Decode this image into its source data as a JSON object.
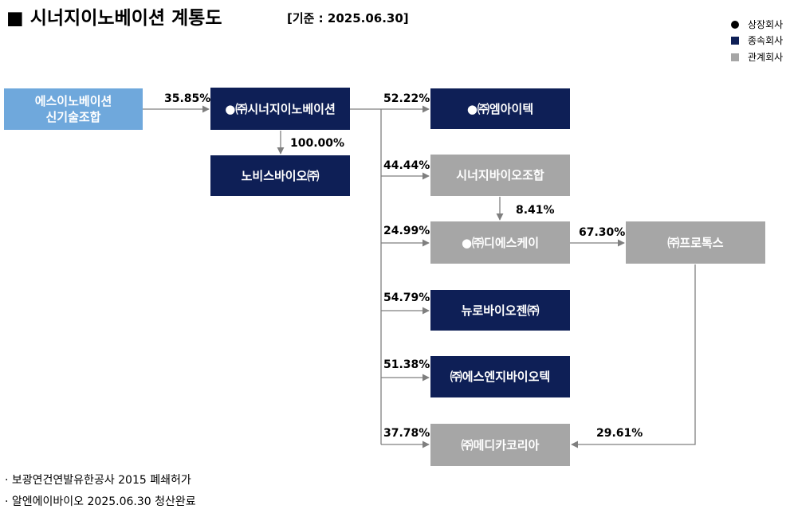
{
  "title": "■ 시너지이노베이션 계통도",
  "base_date": "[기준 : 2025.06.30]",
  "legend": [
    {
      "marker": "circle",
      "label": "상장회사"
    },
    {
      "marker": "navy",
      "label": "종속회사"
    },
    {
      "marker": "gray",
      "label": "관계회사"
    }
  ],
  "nodes": {
    "esinno": {
      "line1": "에스이노베이션",
      "line2": "신기술조합"
    },
    "synergy": {
      "label": "●㈜시너지이노베이션"
    },
    "novis": {
      "label": "노비스바이오㈜"
    },
    "mitech": {
      "label": "●㈜엠아이텍"
    },
    "synergybio": {
      "label": "시너지바이오조합"
    },
    "dsk": {
      "label": "●㈜디에스케이"
    },
    "protox": {
      "label": "㈜프로톡스"
    },
    "neuro": {
      "label": "뉴로바이오젠㈜"
    },
    "sj": {
      "label": "㈜에스엔지바이오텍"
    },
    "medi": {
      "label": "㈜메디카코리아"
    }
  },
  "stakes": {
    "esinno_synergy": "35.85%",
    "synergy_novis": "100.00%",
    "synergy_mitech": "52.22%",
    "synergy_synergybio": "44.44%",
    "synergybio_dsk": "8.41%",
    "synergy_dsk": "24.99%",
    "dsk_protox": "67.30%",
    "synergy_neuro": "54.79%",
    "synergy_sj": "51.38%",
    "synergy_medi": "37.78%",
    "protox_medi": "29.61%"
  },
  "notes": [
    "· 보광연건연발유한공사 2015 폐쇄허가",
    "· 알엔에이바이오 2025.06.30 청산완료"
  ],
  "colors": {
    "navy": "#0e1f56",
    "gray": "#a6a6a6",
    "light_blue": "#6fa8dc",
    "line": "#7f7f7f"
  }
}
